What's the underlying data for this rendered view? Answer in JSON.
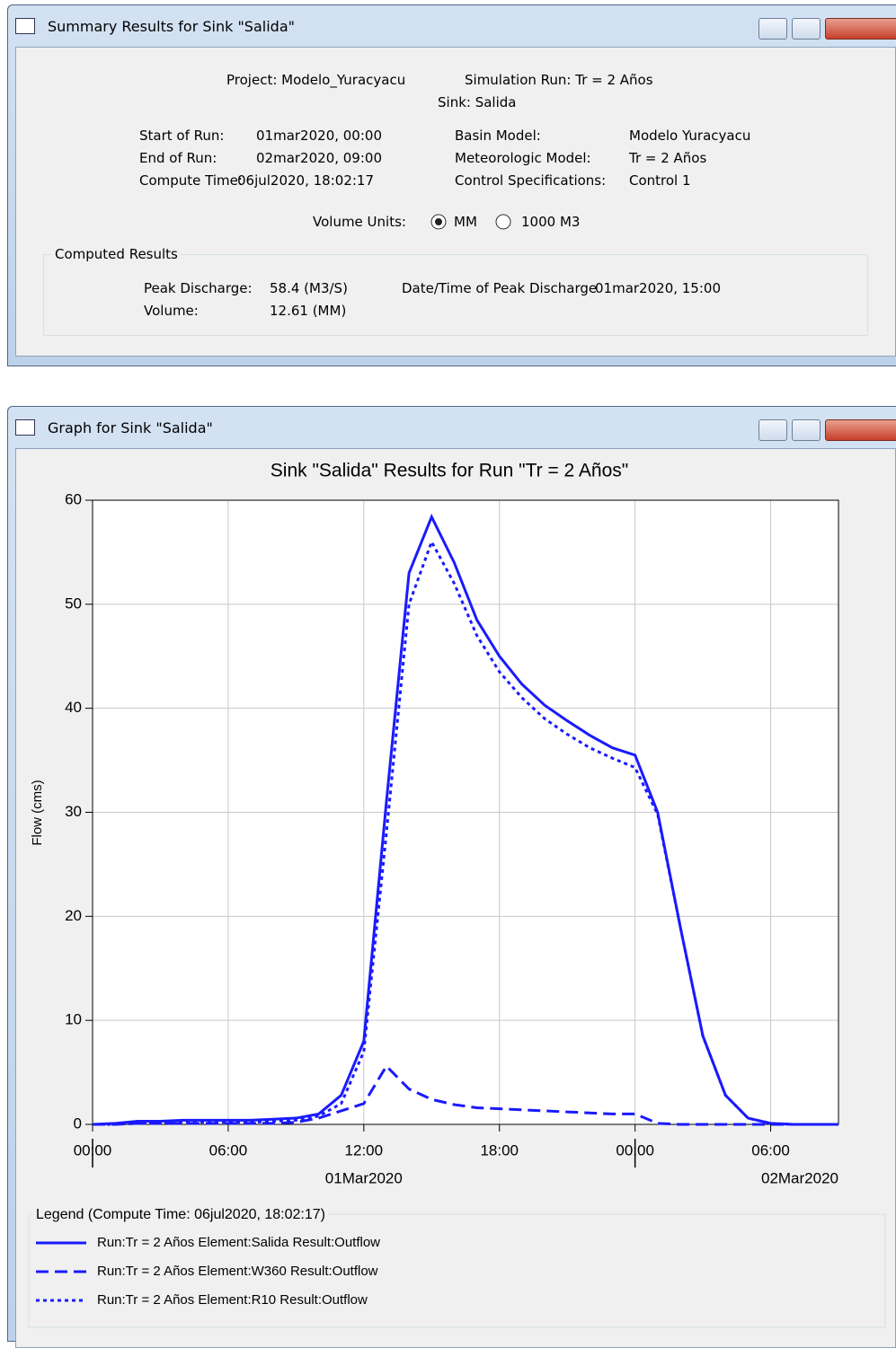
{
  "summary_window": {
    "title": "Summary Results for Sink \"Salida\"",
    "project": "Project: Modelo_Yuracyacu",
    "simulation_run": "Simulation Run: Tr = 2 Años",
    "sink": "Sink: Salida",
    "run_info": [
      {
        "label": "Start of Run:",
        "value": "01mar2020, 00:00"
      },
      {
        "label": "End of Run:",
        "value": "02mar2020, 09:00"
      },
      {
        "label": "Compute Time:",
        "value": "06jul2020, 18:02:17"
      }
    ],
    "model_info": [
      {
        "label": "Basin Model:",
        "value": "Modelo Yuracyacu"
      },
      {
        "label": "Meteorologic Model:",
        "value": "Tr = 2 Años"
      },
      {
        "label": "Control Specifications:",
        "value": "Control 1"
      }
    ],
    "volume_units": {
      "label": "Volume Units:",
      "options": [
        "MM",
        "1000 M3"
      ],
      "selected": 0
    },
    "computed_results": {
      "title": "Computed Results",
      "peak_discharge": {
        "label": "Peak Discharge:",
        "value": "58.4 (M3/S)"
      },
      "peak_time": {
        "label": "Date/Time of Peak Discharge",
        "value": "01mar2020, 15:00"
      },
      "volume": {
        "label": "Volume:",
        "value": "12.61 (MM)"
      }
    }
  },
  "graph_window": {
    "title": "Graph for Sink \"Salida\"",
    "legend_title": "Legend (Compute Time: 06jul2020, 18:02:17)",
    "chart_data": {
      "type": "line",
      "title": "Sink \"Salida\" Results for Run \"Tr = 2 Años\"",
      "y_label": "Flow (cms)",
      "x": [
        0,
        1,
        2,
        3,
        4,
        5,
        6,
        7,
        8,
        9,
        10,
        11,
        12,
        13,
        14,
        15,
        16,
        17,
        18,
        19,
        20,
        21,
        22,
        23,
        24,
        25,
        26,
        27,
        28,
        29,
        30,
        31,
        32,
        33
      ],
      "xlim": [
        0,
        33
      ],
      "xticks": [
        {
          "value": 0,
          "label": "00:00"
        },
        {
          "value": 6,
          "label": "06:00"
        },
        {
          "value": 12,
          "label": "12:00"
        },
        {
          "value": 18,
          "label": "18:00"
        },
        {
          "value": 24,
          "label": "00:00"
        },
        {
          "value": 30,
          "label": "06:00"
        }
      ],
      "day_ticks": [
        {
          "value": 0,
          "label": "01Mar2020"
        },
        {
          "value": 24,
          "label": "02Mar2020"
        }
      ],
      "ylim": [
        0,
        60
      ],
      "yticks": [
        0,
        10,
        20,
        30,
        40,
        50,
        60
      ],
      "grid": true,
      "series": [
        {
          "name": "Run:Tr = 2 Años Element:Salida Result:Outflow",
          "color": "#1a1aff",
          "dash": "solid",
          "values": [
            0,
            0.1,
            0.3,
            0.3,
            0.4,
            0.4,
            0.4,
            0.4,
            0.5,
            0.6,
            1.0,
            2.8,
            8,
            31,
            53,
            58.4,
            54,
            48.5,
            45,
            42.3,
            40.3,
            38.8,
            37.4,
            36.2,
            35.5,
            30,
            19,
            8.5,
            2.8,
            0.6,
            0.1,
            0,
            0,
            0
          ]
        },
        {
          "name": "Run:Tr = 2 Años Element:W360 Result:Outflow",
          "color": "#1a1aff",
          "dash": "dashed",
          "values": [
            0,
            0,
            0.1,
            0.1,
            0.1,
            0.1,
            0.1,
            0.1,
            0.1,
            0.2,
            0.6,
            1.3,
            2,
            5.6,
            3.4,
            2.4,
            1.9,
            1.6,
            1.5,
            1.4,
            1.3,
            1.2,
            1.1,
            1.0,
            1.0,
            0.1,
            0,
            0,
            0,
            0,
            0,
            0,
            0,
            0
          ]
        },
        {
          "name": "Run:Tr = 2 Años Element:R10 Result:Outflow",
          "color": "#1a1aff",
          "dash": "dotted",
          "values": [
            0,
            0,
            0.1,
            0.1,
            0.2,
            0.2,
            0.2,
            0.2,
            0.3,
            0.4,
            0.8,
            2,
            7,
            28,
            50,
            56,
            52,
            47,
            43.5,
            41,
            39,
            37.5,
            36.2,
            35.2,
            34.3,
            29.8,
            19,
            8.5,
            2.8,
            0.6,
            0.1,
            0,
            0,
            0
          ]
        }
      ]
    }
  }
}
